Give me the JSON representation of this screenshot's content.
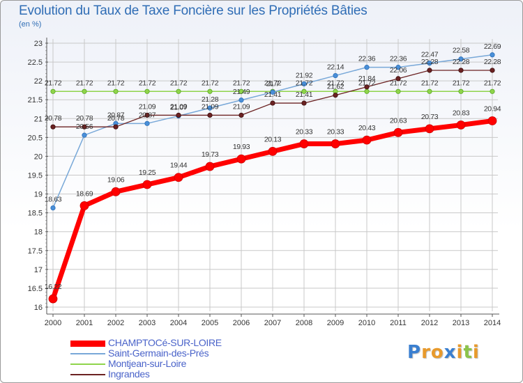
{
  "chart_data": {
    "type": "line",
    "title": "Evolution du Taux de Taxe Foncière sur les Propriétés Bâties",
    "ylabel": "(en %)",
    "xlabel": "",
    "ylim": [
      16,
      23
    ],
    "yticks": [
      "16",
      "16.5",
      "17",
      "17.5",
      "18",
      "18.5",
      "19",
      "19.5",
      "20",
      "20.5",
      "21",
      "21.5",
      "22",
      "22.5",
      "23"
    ],
    "categories": [
      "2000",
      "2001",
      "2002",
      "2003",
      "2004",
      "2005",
      "2006",
      "2007",
      "2008",
      "2009",
      "2010",
      "2011",
      "2012",
      "2013",
      "2014"
    ],
    "grid": true,
    "legend_position": "bottom-left",
    "series": [
      {
        "name": "CHAMPTOCé-SUR-LOIRE",
        "color": "#ff0000",
        "values": [
          16.22,
          18.69,
          19.06,
          19.25,
          19.44,
          19.73,
          19.93,
          20.13,
          20.33,
          20.33,
          20.43,
          20.63,
          20.73,
          20.83,
          20.94
        ],
        "labels": [
          "16.22",
          "18.69",
          "19.06",
          "19.25",
          "19.44",
          "19.73",
          "19.93",
          "20.13",
          "20.33",
          "20.33",
          "20.43",
          "20.63",
          "20.73",
          "20.83",
          "20.94"
        ]
      },
      {
        "name": "Saint-Germain-des-Prés",
        "color": "#78a8d8",
        "values": [
          18.63,
          20.56,
          20.87,
          20.87,
          21.07,
          21.28,
          21.49,
          21.7,
          21.92,
          22.14,
          22.36,
          22.36,
          22.47,
          22.58,
          22.69
        ],
        "labels": [
          "18.63",
          "20.56",
          "20.87",
          "20.87",
          "21.07",
          "21.28",
          "21.49",
          "21.7",
          "21.92",
          "22.14",
          "22.36",
          "22.36",
          "22.47",
          "22.58",
          "22.69"
        ]
      },
      {
        "name": "Montjean-sur-Loire",
        "color": "#8fd44a",
        "values": [
          21.72,
          21.72,
          21.72,
          21.72,
          21.72,
          21.72,
          21.72,
          21.72,
          21.72,
          21.72,
          21.72,
          21.72,
          21.72,
          21.72,
          21.72
        ],
        "labels": [
          "21.72",
          "21.72",
          "21.72",
          "21.72",
          "21.72",
          "21.72",
          "21.72",
          "21.72",
          "21.72",
          "21.72",
          "21.72",
          "21.72",
          "21.72",
          "21.72",
          "21.72"
        ]
      },
      {
        "name": "Ingrandes",
        "color": "#6b2222",
        "values": [
          20.78,
          20.78,
          20.78,
          21.09,
          21.09,
          21.09,
          21.09,
          21.41,
          21.41,
          21.62,
          21.84,
          22.06,
          22.28,
          22.28,
          22.28
        ],
        "labels": [
          "20.78",
          "20.78",
          "20.78",
          "21.09",
          "21.09",
          "21.09",
          "21.09",
          "21.41",
          "21.41",
          "21.62",
          "21.84",
          "22.06",
          "22.28",
          "22.28",
          "22.28"
        ]
      }
    ]
  },
  "logo": {
    "letters": [
      "P",
      "r",
      "o",
      "x",
      "i",
      "t",
      "i"
    ],
    "colors": [
      "#3a7fd0",
      "#e89a2c",
      "#e89a2c",
      "#3a7fd0",
      "#e89a2c",
      "#8bc34a",
      "#e89a2c"
    ]
  }
}
